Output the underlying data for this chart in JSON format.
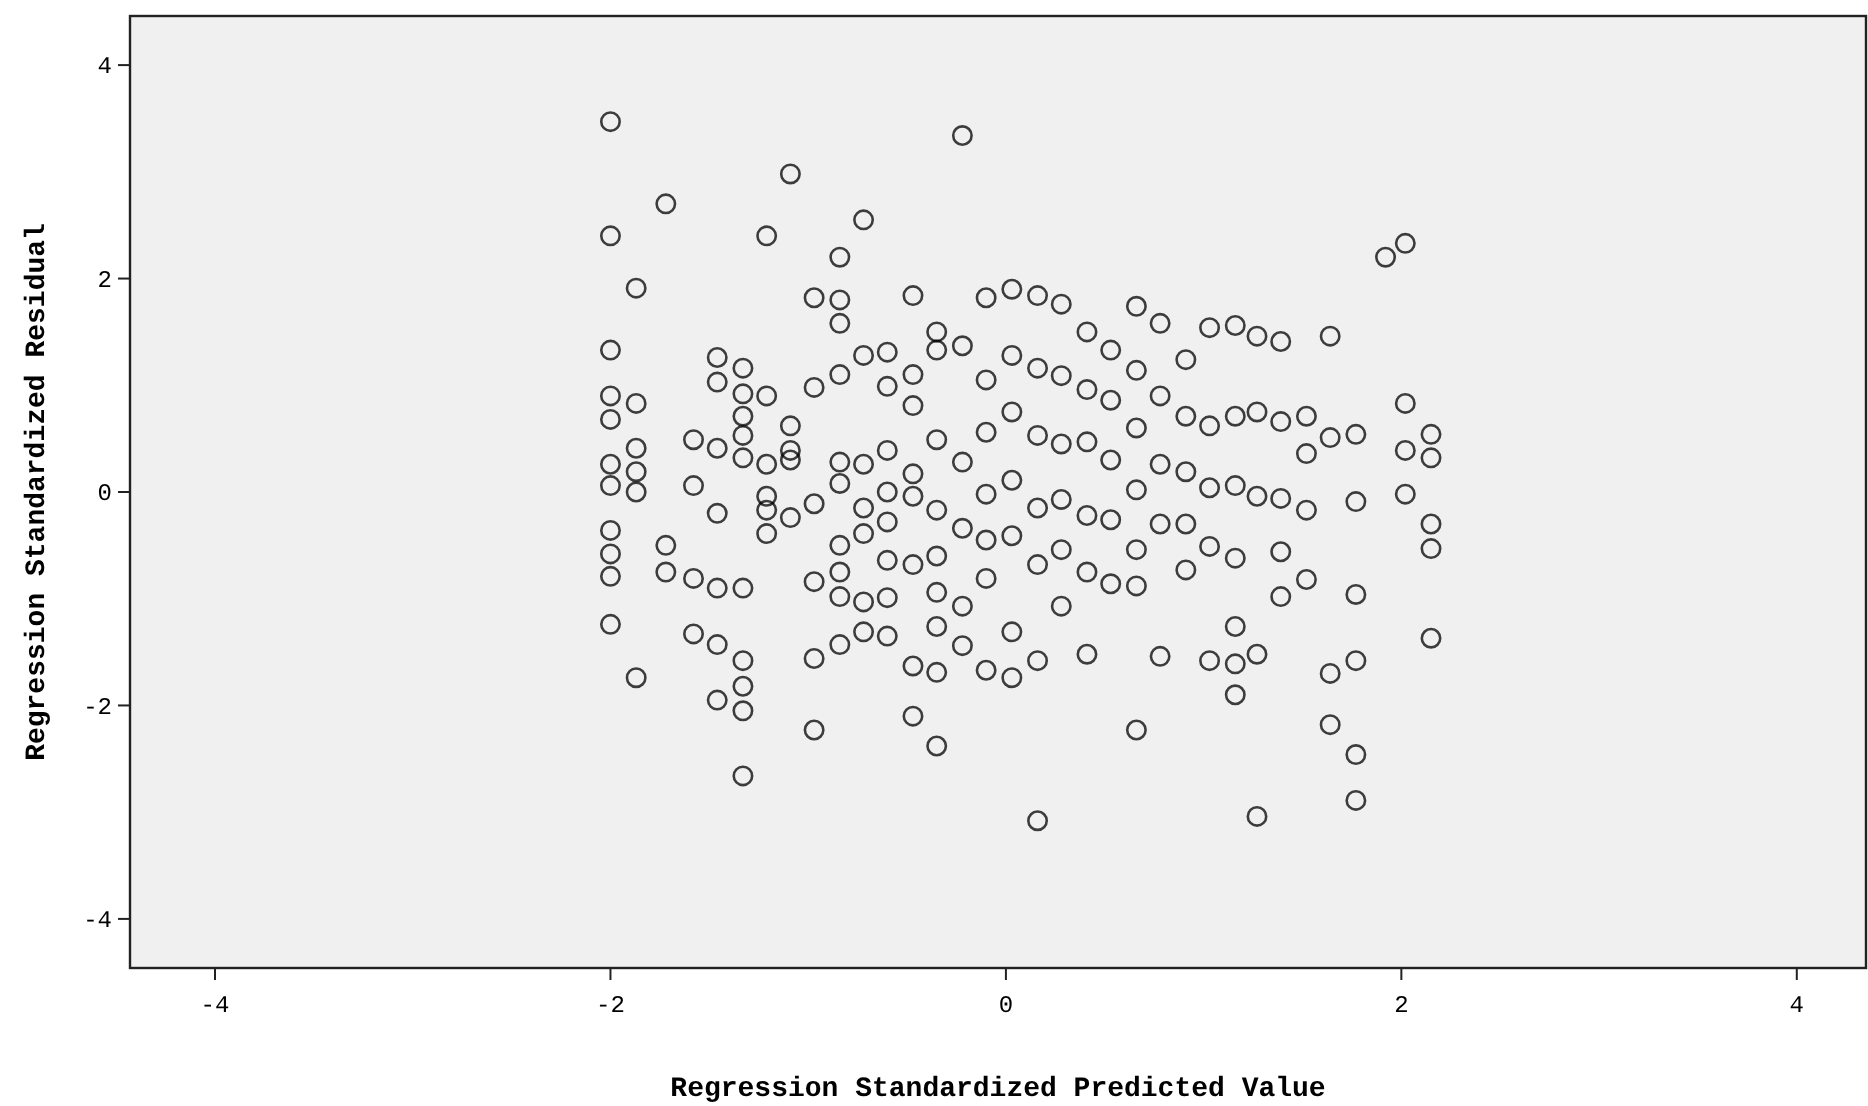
{
  "chart_data": {
    "type": "scatter",
    "xlabel": "Regression Standardized Predicted Value",
    "ylabel": "Regression Standardized Residual",
    "xlim": [
      -4.43,
      4.35
    ],
    "ylim": [
      -4.46,
      4.46
    ],
    "xticks": [
      -4,
      -2,
      0,
      2,
      4
    ],
    "yticks": [
      -4,
      -2,
      0,
      2,
      4
    ],
    "grid": false,
    "marker": "circle",
    "series": [
      {
        "color": "#000000",
        "x": [
          -2,
          -2,
          -2,
          -2,
          -2,
          -2,
          -2,
          -2,
          -2,
          -2,
          -2,
          -1.87,
          -1.87,
          -1.87,
          -1.87,
          -1.87,
          -1.87,
          -1.72,
          -1.72,
          -1.72,
          -1.58,
          -1.58,
          -1.58,
          -1.58,
          -1.46,
          -1.46,
          -1.46,
          -1.46,
          -1.46,
          -1.46,
          -1.46,
          -1.33,
          -1.33,
          -1.33,
          -1.33,
          -1.33,
          -1.33,
          -1.33,
          -1.33,
          -1.33,
          -1.33,
          -1.21,
          -1.21,
          -1.21,
          -1.21,
          -1.21,
          -1.21,
          -1.09,
          -1.09,
          -1.09,
          -1.09,
          -1.09,
          -0.97,
          -0.97,
          -0.97,
          -0.97,
          -0.97,
          -0.97,
          -0.84,
          -0.84,
          -0.84,
          -0.84,
          -0.84,
          -0.84,
          -0.84,
          -0.84,
          -0.84,
          -0.84,
          -0.72,
          -0.72,
          -0.72,
          -0.72,
          -0.72,
          -0.72,
          -0.72,
          -0.6,
          -0.6,
          -0.6,
          -0.6,
          -0.6,
          -0.6,
          -0.6,
          -0.6,
          -0.47,
          -0.47,
          -0.47,
          -0.47,
          -0.47,
          -0.47,
          -0.47,
          -0.47,
          -0.35,
          -0.35,
          -0.35,
          -0.35,
          -0.35,
          -0.35,
          -0.35,
          -0.35,
          -0.35,
          -0.22,
          -0.22,
          -0.22,
          -0.22,
          -0.22,
          -0.22,
          -0.1,
          -0.1,
          -0.1,
          -0.1,
          -0.1,
          -0.1,
          -0.1,
          0.03,
          0.03,
          0.03,
          0.03,
          0.03,
          0.03,
          0.03,
          0.16,
          0.16,
          0.16,
          0.16,
          0.16,
          0.16,
          0.16,
          0.28,
          0.28,
          0.28,
          0.28,
          0.28,
          0.28,
          0.41,
          0.41,
          0.41,
          0.41,
          0.41,
          0.41,
          0.53,
          0.53,
          0.53,
          0.53,
          0.53,
          0.66,
          0.66,
          0.66,
          0.66,
          0.66,
          0.66,
          0.66,
          0.78,
          0.78,
          0.78,
          0.78,
          0.78,
          0.91,
          0.91,
          0.91,
          0.91,
          0.91,
          1.03,
          1.03,
          1.03,
          1.03,
          1.03,
          1.16,
          1.16,
          1.16,
          1.16,
          1.16,
          1.16,
          1.16,
          1.27,
          1.27,
          1.27,
          1.27,
          1.27,
          1.39,
          1.39,
          1.39,
          1.39,
          1.39,
          1.52,
          1.52,
          1.52,
          1.52,
          1.64,
          1.64,
          1.64,
          1.64,
          1.77,
          1.77,
          1.77,
          1.77,
          1.77,
          1.77,
          1.92,
          2.02,
          2.02,
          2.02,
          2.02,
          2.15,
          2.15,
          2.15,
          2.15,
          2.15
        ],
        "values": [
          3.47,
          2.4,
          1.33,
          0.9,
          0.68,
          0.26,
          0.06,
          -0.36,
          -0.58,
          -0.79,
          -1.24,
          1.91,
          0.83,
          0.41,
          0.19,
          0,
          -1.74,
          2.7,
          -0.5,
          -0.75,
          0.49,
          0.06,
          -0.81,
          -1.33,
          1.26,
          1.03,
          0.41,
          -0.2,
          -0.9,
          -1.43,
          -1.95,
          1.16,
          0.92,
          0.71,
          0.53,
          0.32,
          -0.9,
          -1.58,
          -1.82,
          -2.05,
          -2.66,
          2.4,
          0.9,
          0.26,
          -0.04,
          -0.17,
          -0.39,
          2.98,
          0.62,
          0.39,
          0.3,
          -0.24,
          1.82,
          0.98,
          -0.11,
          -0.84,
          -1.56,
          -2.23,
          2.2,
          1.8,
          1.58,
          1.1,
          0.28,
          0.08,
          -0.5,
          -0.75,
          -0.98,
          -1.43,
          2.55,
          1.28,
          0.26,
          -0.15,
          -0.39,
          -1.03,
          -1.31,
          1.31,
          0.99,
          0.39,
          0,
          -0.28,
          -0.64,
          -0.99,
          -1.35,
          1.84,
          1.1,
          0.81,
          0.17,
          -0.04,
          -0.68,
          -1.63,
          -2.1,
          1.5,
          1.33,
          0.49,
          -0.17,
          -0.6,
          -0.94,
          -1.26,
          -1.69,
          -2.38,
          3.34,
          1.37,
          0.28,
          -0.34,
          -1.07,
          -1.44,
          1.82,
          1.05,
          0.56,
          -0.02,
          -0.45,
          -0.81,
          -1.67,
          1.9,
          1.28,
          0.75,
          0.11,
          -0.41,
          -1.31,
          -1.74,
          1.84,
          1.16,
          0.53,
          -0.15,
          -0.68,
          -1.58,
          -3.08,
          1.76,
          1.09,
          0.45,
          -0.07,
          -0.54,
          -1.07,
          1.5,
          0.96,
          0.47,
          -0.22,
          -0.75,
          -1.52,
          1.33,
          0.86,
          0.3,
          -0.26,
          -0.86,
          1.74,
          1.14,
          0.6,
          0.02,
          -0.54,
          -0.88,
          -2.23,
          1.58,
          0.9,
          0.26,
          -0.3,
          -1.54,
          1.24,
          0.71,
          0.19,
          -0.3,
          -0.73,
          1.54,
          0.62,
          0.04,
          -0.51,
          -1.58,
          1.56,
          0.71,
          0.06,
          -0.62,
          -1.26,
          -1.61,
          -1.9,
          1.46,
          0.75,
          -0.04,
          -1.52,
          -3.04,
          1.41,
          0.66,
          -0.06,
          -0.56,
          -0.98,
          0.71,
          0.36,
          -0.17,
          -0.82,
          1.46,
          0.51,
          -1.7,
          -2.18,
          0.54,
          -0.09,
          -0.96,
          -1.58,
          -2.46,
          -2.89,
          2.2,
          2.33,
          0.83,
          0.39,
          -0.02,
          0.54,
          0.32,
          -0.3,
          -0.53,
          -1.37
        ]
      }
    ]
  }
}
